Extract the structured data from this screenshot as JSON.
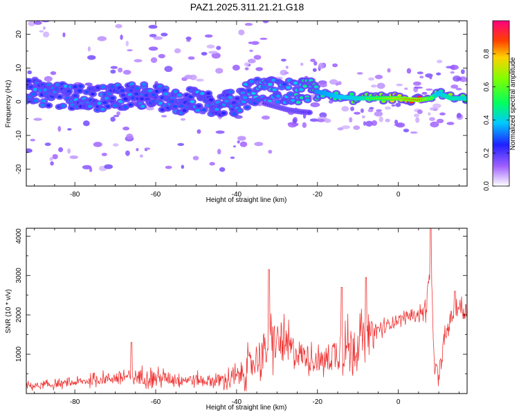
{
  "title": "PAZ1.2025.311.21.21.G18",
  "chart_data": [
    {
      "type": "heatmap",
      "name": "spectrogram",
      "xlabel": "Height of straight line (km)",
      "ylabel": "Frequency (Hz)",
      "xlim": [
        -92,
        17
      ],
      "ylim": [
        -25,
        24
      ],
      "xticks": [
        -80,
        -60,
        -40,
        -20,
        0
      ],
      "xtick_labels": [
        "-80",
        "-60",
        "-40",
        "-20",
        "0"
      ],
      "yticks": [
        -20,
        -10,
        0,
        10,
        20
      ],
      "ytick_labels": [
        "-20",
        "-10",
        "0",
        "10",
        "20"
      ],
      "colorbar": {
        "label": "Normalized spectral amplitude",
        "range": [
          0,
          1
        ],
        "ticks": [
          0.0,
          0.2,
          0.4,
          0.6,
          0.8
        ],
        "tick_labels": [
          "0.0",
          "0.2",
          "0.4",
          "0.6",
          "0.8"
        ]
      },
      "ridge": {
        "description": "frequency of the main spectral ridge vs height",
        "x": [
          -91,
          -85,
          -80,
          -75,
          -70,
          -65,
          -60,
          -55,
          -50,
          -45,
          -40,
          -36,
          -32,
          -28,
          -24,
          -20,
          -15,
          -10,
          -5,
          0,
          5,
          8,
          10,
          13,
          16
        ],
        "freq": [
          3,
          2,
          1.5,
          1,
          1.5,
          2,
          1.5,
          0,
          0.5,
          -0.5,
          -0.5,
          3,
          3.5,
          3,
          3,
          3,
          1.5,
          1,
          1,
          1,
          0.5,
          1,
          2.5,
          1,
          1
        ],
        "amplitude": [
          0.3,
          0.3,
          0.3,
          0.3,
          0.3,
          0.3,
          0.3,
          0.3,
          0.3,
          0.3,
          0.3,
          0.35,
          0.35,
          0.35,
          0.4,
          0.45,
          0.5,
          0.55,
          0.65,
          0.8,
          0.9,
          0.7,
          0.5,
          0.6,
          0.55
        ]
      },
      "secondary_branch": {
        "x": [
          -33,
          -30,
          -27,
          -24,
          -22
        ],
        "freq": [
          -0.5,
          -1.5,
          -2.5,
          -3,
          -3.2
        ],
        "amplitude": [
          0.25,
          0.3,
          0.3,
          0.28,
          0.2
        ]
      }
    },
    {
      "type": "line",
      "name": "snr",
      "xlabel": "Height of straight line (km)",
      "ylabel": "SNR (10 * v/v)",
      "xlim": [
        -92,
        17
      ],
      "ylim": [
        0,
        4200
      ],
      "xticks": [
        -80,
        -60,
        -40,
        -20,
        0
      ],
      "xtick_labels": [
        "-80",
        "-60",
        "-40",
        "-20",
        "0"
      ],
      "yticks": [
        1000,
        2000,
        3000,
        4000
      ],
      "ytick_labels": [
        "1000",
        "2000",
        "3000",
        "4000"
      ],
      "color": "#ee3333",
      "series": [
        {
          "name": "SNR",
          "x": [
            -92,
            -88,
            -84,
            -80,
            -76,
            -72,
            -68,
            -64,
            -60,
            -56,
            -52,
            -48,
            -44,
            -40,
            -37,
            -34,
            -31,
            -28,
            -25,
            -22,
            -19,
            -16,
            -13,
            -10,
            -7,
            -4,
            -1,
            2,
            4,
            6,
            7,
            8,
            9,
            10,
            11,
            12,
            13,
            14,
            15,
            17
          ],
          "base": [
            200,
            200,
            240,
            280,
            330,
            380,
            420,
            430,
            400,
            380,
            360,
            330,
            330,
            400,
            700,
            1000,
            1350,
            1200,
            1050,
            900,
            800,
            1000,
            1150,
            1300,
            1550,
            1650,
            1850,
            1950,
            2000,
            2050,
            2300,
            3000,
            700,
            350,
            1100,
            1600,
            1900,
            2150,
            2200,
            2100
          ],
          "spread": [
            150,
            150,
            150,
            150,
            200,
            250,
            300,
            350,
            300,
            300,
            250,
            250,
            300,
            450,
            650,
            800,
            1000,
            800,
            650,
            500,
            500,
            800,
            900,
            900,
            550,
            300,
            250,
            200,
            200,
            300,
            500,
            700,
            400,
            300,
            400,
            400,
            400,
            400,
            400,
            400
          ]
        }
      ],
      "peaks": [
        {
          "x": -66,
          "y": 1300
        },
        {
          "x": -32,
          "y": 3150
        },
        {
          "x": -14,
          "y": 2700
        },
        {
          "x": -8,
          "y": 2950
        },
        {
          "x": 8,
          "y": 4200
        },
        {
          "x": 14,
          "y": 2600
        }
      ]
    }
  ]
}
